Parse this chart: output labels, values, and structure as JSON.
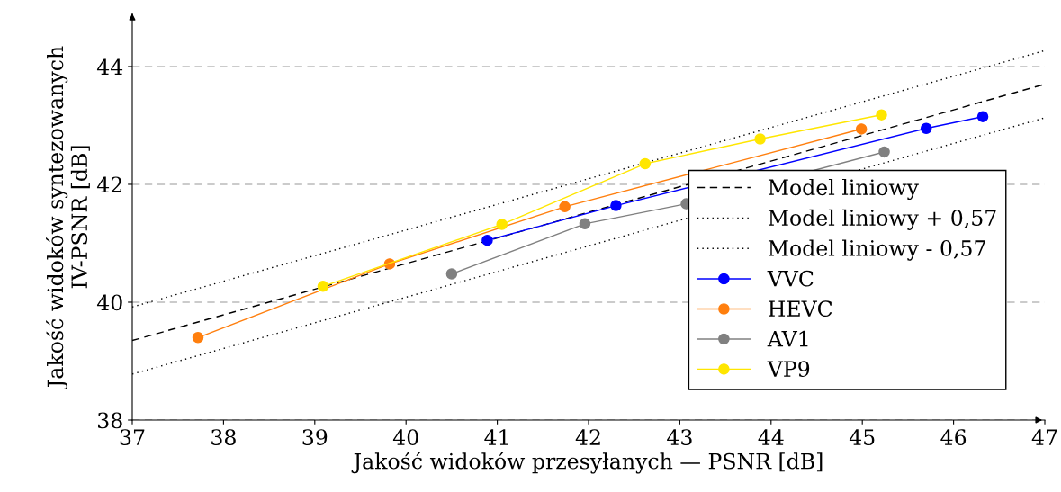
{
  "chart_data": {
    "type": "line",
    "xlabel": "Jakość widoków przesyłanych — PSNR [dB]",
    "ylabel": "Jakość widoków syntezowanych\nIV-PSNR [dB]",
    "xlim": [
      37,
      47
    ],
    "ylim": [
      38,
      44.9
    ],
    "xticks": [
      37,
      38,
      39,
      40,
      41,
      42,
      43,
      44,
      45,
      46,
      47
    ],
    "yticks": [
      38,
      40,
      42,
      44
    ],
    "grid": "y",
    "legend": "right",
    "marker": "circle",
    "series": [
      {
        "name": "Model liniowy",
        "color": "#000000",
        "x": [
          37,
          47
        ],
        "values": [
          39.35,
          43.7
        ],
        "line_style": "dashed",
        "marker": "none"
      },
      {
        "name": "Model liniowy + 0,57",
        "color": "#000000",
        "x": [
          37,
          47
        ],
        "values": [
          39.92,
          44.27
        ],
        "line_style": "dotted",
        "marker": "none"
      },
      {
        "name": "Model liniowy - 0,57",
        "color": "#000000",
        "x": [
          37,
          47
        ],
        "values": [
          38.78,
          43.13
        ],
        "line_style": "dotted",
        "marker": "none"
      },
      {
        "name": "VVC",
        "color": "#0000ff",
        "x": [
          40.89,
          42.3,
          45.7,
          46.32
        ],
        "values": [
          41.05,
          41.64,
          42.95,
          43.15
        ]
      },
      {
        "name": "HEVC",
        "color": "#ff7f0e",
        "x": [
          37.72,
          39.82,
          41.74,
          44.99
        ],
        "values": [
          39.4,
          40.65,
          41.62,
          42.94
        ]
      },
      {
        "name": "AV1",
        "color": "#808080",
        "x": [
          40.5,
          41.96,
          43.07,
          45.24
        ],
        "values": [
          40.48,
          41.33,
          41.67,
          42.55
        ]
      },
      {
        "name": "VP9",
        "color": "#ffe600",
        "x": [
          39.09,
          41.05,
          42.62,
          43.88,
          45.21
        ],
        "values": [
          40.27,
          41.32,
          42.35,
          42.77,
          43.18
        ]
      }
    ]
  }
}
